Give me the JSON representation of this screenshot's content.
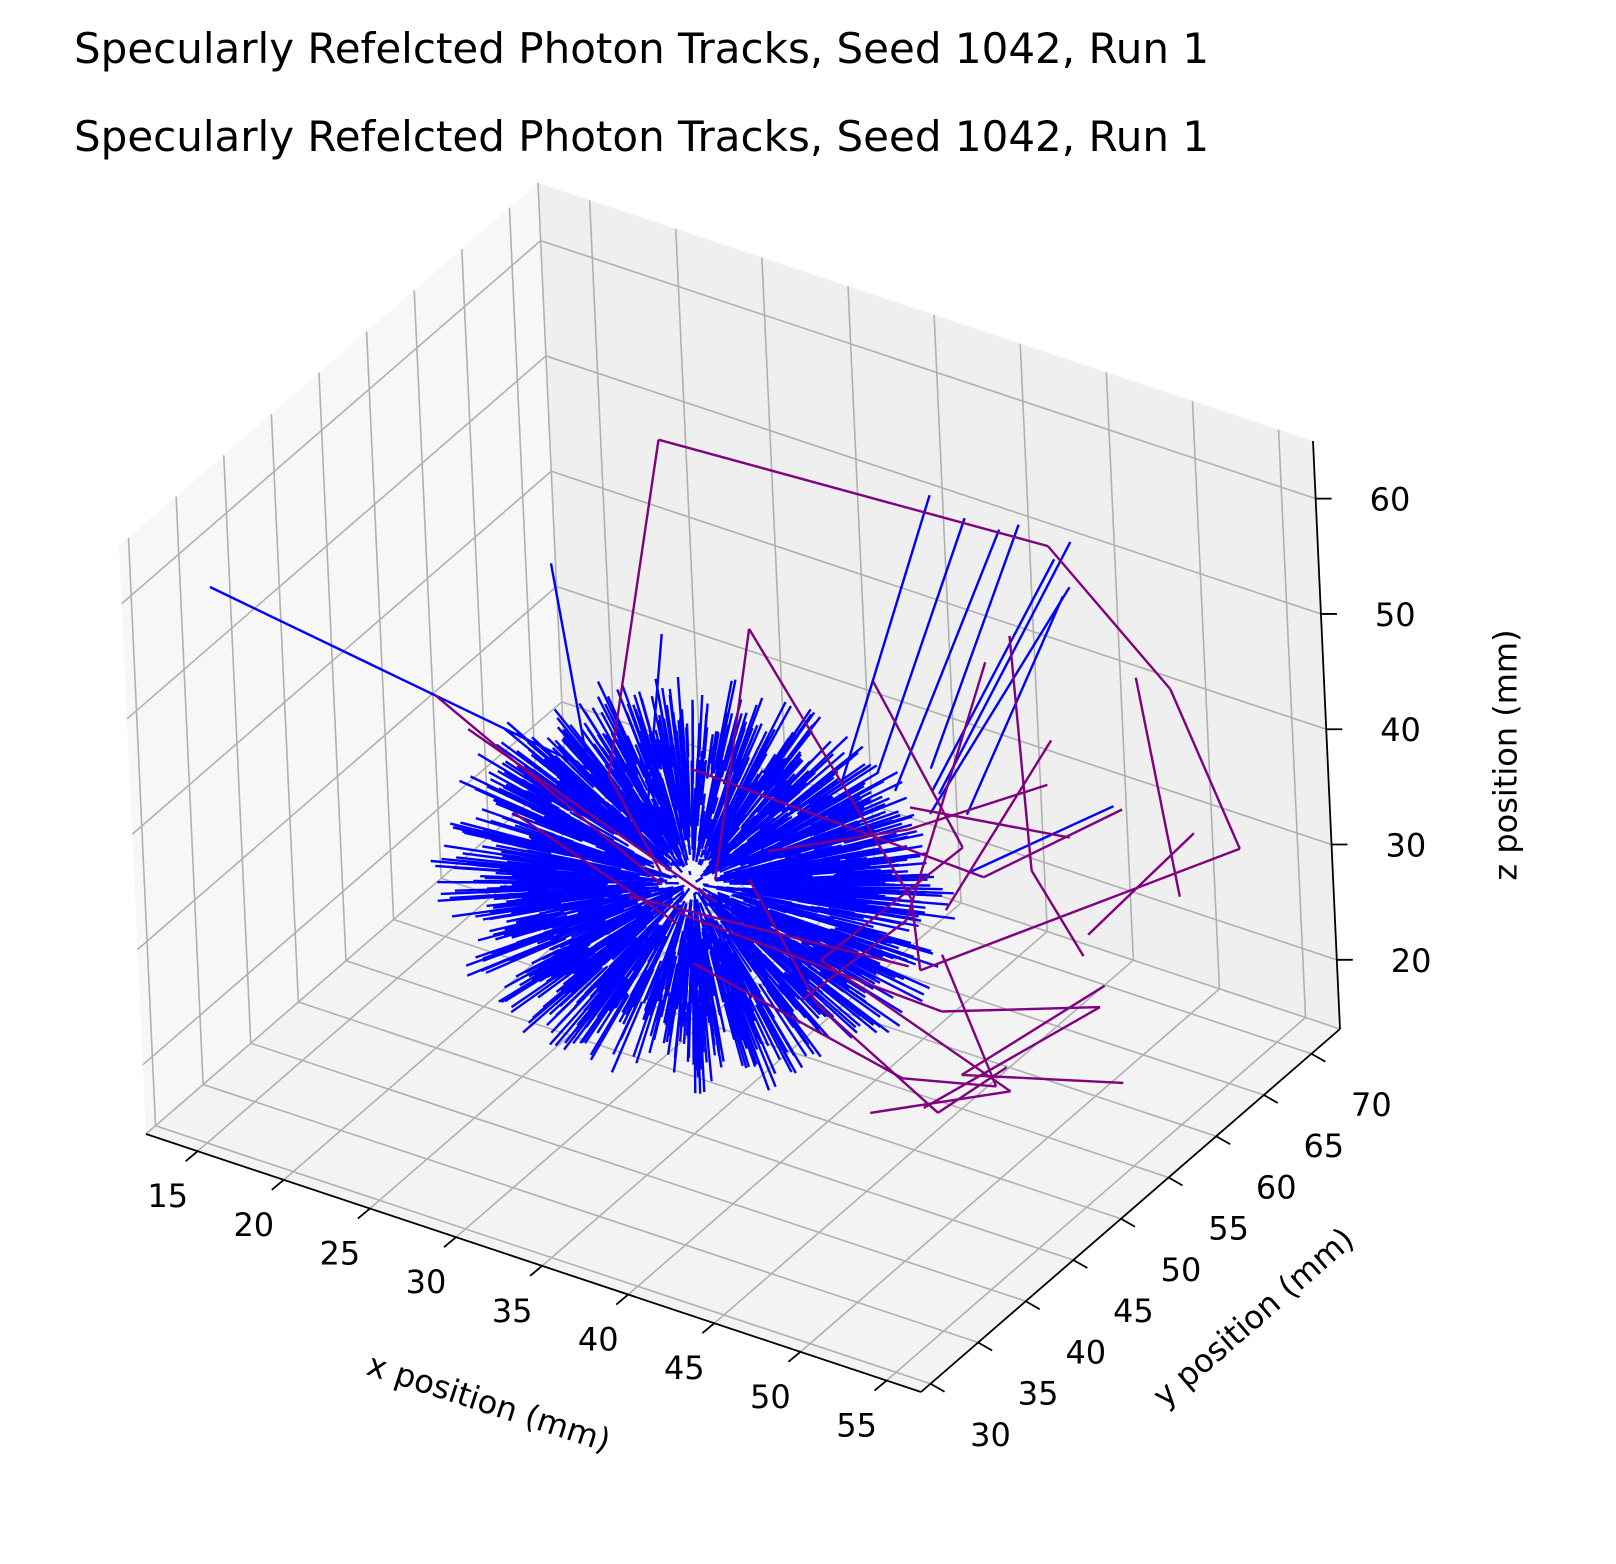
{
  "titles": [
    "Specularly Refelcted Photon Tracks, Seed 1042, Run 1",
    "Specularly Refelcted Photon Tracks, Seed 1042, Run 1"
  ],
  "chart_data": {
    "type": "line",
    "projection": "3d",
    "title": "Specularly Refelcted Photon Tracks, Seed 1042, Run 1",
    "xlabel": "x position (mm)",
    "ylabel": "y position (mm)",
    "zlabel": "z position (mm)",
    "xlim": [
      12,
      57
    ],
    "ylim": [
      29,
      73
    ],
    "zlim": [
      14,
      65
    ],
    "xticks": [
      15,
      20,
      25,
      30,
      35,
      40,
      45,
      50,
      55
    ],
    "yticks": [
      30,
      35,
      40,
      45,
      50,
      55,
      60,
      65,
      70
    ],
    "zticks": [
      20,
      30,
      40,
      50,
      60
    ],
    "grid": true,
    "colors": {
      "tracks": "#0000ff",
      "reflected": "#800080",
      "pane_light": "#f7f7f7",
      "pane_dark": "#efefef",
      "grid": "#b0b0b0"
    },
    "series": [
      {
        "color": "#0000ff",
        "center": [
          35,
          46,
          35
        ],
        "count": 1200,
        "inner_radius": 8.5,
        "outer_radius": [
          9.5,
          13.5
        ],
        "long_tracks": [
          [
            [
              12,
              38,
              55
            ],
            [
              28,
              48,
              40
            ]
          ],
          [
            [
              24,
              52,
              53
            ],
            [
              28,
              48,
              40
            ]
          ],
          [
            [
              28,
              56,
              46
            ],
            [
              30,
              50,
              34
            ]
          ],
          [
            [
              36,
              70,
              52
            ],
            [
              37,
              58,
              36
            ]
          ],
          [
            [
              38,
              70,
              51
            ],
            [
              38,
              60,
              36
            ]
          ],
          [
            [
              40,
              70,
              51
            ],
            [
              39,
              60,
              35
            ]
          ],
          [
            [
              40,
              72,
              50
            ],
            [
              40,
              62,
              36
            ]
          ],
          [
            [
              42,
              72,
              48
            ],
            [
              40,
              62,
              34
            ]
          ],
          [
            [
              43,
              72,
              50
            ],
            [
              41,
              61,
              35
            ]
          ],
          [
            [
              44,
              70,
              48
            ],
            [
              41,
              60,
              34
            ]
          ],
          [
            [
              43,
              71,
              46
            ],
            [
              42,
              62,
              33
            ]
          ],
          [
            [
              46,
              70,
              30
            ],
            [
              42,
              62,
              28
            ]
          ]
        ]
      },
      {
        "color": "#800080",
        "segments": [
          [
            [
              18,
              50,
              40
            ],
            [
              32,
              48,
              32
            ]
          ],
          [
            [
              26,
              60,
              59
            ],
            [
              44,
              68,
              53
            ]
          ],
          [
            [
              44,
              68,
              53
            ],
            [
              52,
              66,
              46
            ]
          ],
          [
            [
              52,
              66,
              46
            ],
            [
              58,
              62,
              38
            ]
          ],
          [
            [
              58,
              62,
              38
            ],
            [
              47,
              48,
              32
            ]
          ],
          [
            [
              26,
              60,
              59
            ],
            [
              28,
              50,
              38
            ]
          ],
          [
            [
              28,
              50,
              38
            ],
            [
              32,
              48,
              33
            ]
          ],
          [
            [
              32,
              58,
              47
            ],
            [
              34,
              50,
              32
            ]
          ],
          [
            [
              32,
              58,
              47
            ],
            [
              42,
              56,
              30
            ]
          ],
          [
            [
              42,
              56,
              30
            ],
            [
              47,
              48,
              32
            ]
          ],
          [
            [
              38,
              60,
              44
            ],
            [
              44,
              58,
              34
            ]
          ],
          [
            [
              44,
              58,
              34
            ],
            [
              40,
              50,
              28
            ]
          ],
          [
            [
              45,
              62,
              50
            ],
            [
              48,
              58,
              34
            ]
          ],
          [
            [
              48,
              58,
              34
            ],
            [
              52,
              56,
              30
            ]
          ],
          [
            [
              50,
              66,
              46
            ],
            [
              52,
              66,
              28
            ]
          ],
          [
            [
              47,
              56,
              53
            ],
            [
              44,
              52,
              32
            ]
          ],
          [
            [
              44,
              52,
              32
            ],
            [
              40,
              48,
              26
            ]
          ],
          [
            [
              30,
              55,
              36
            ],
            [
              44,
              60,
              30
            ]
          ],
          [
            [
              44,
              60,
              30
            ],
            [
              50,
              64,
              36
            ]
          ],
          [
            [
              36,
              52,
              34
            ],
            [
              42,
              56,
              36
            ]
          ],
          [
            [
              42,
              56,
              36
            ],
            [
              48,
              60,
              40
            ]
          ],
          [
            [
              21,
              48,
              40
            ],
            [
              34,
              50,
              30
            ]
          ],
          [
            [
              34,
              46,
              32
            ],
            [
              47,
              50,
              27
            ]
          ],
          [
            [
              47,
              50,
              27
            ],
            [
              54,
              54,
              28
            ]
          ],
          [
            [
              54,
              54,
              28
            ],
            [
              48,
              46,
              22
            ]
          ],
          [
            [
              36,
              44,
              30
            ],
            [
              48,
              44,
              26
            ]
          ],
          [
            [
              48,
              44,
              26
            ],
            [
              50,
              50,
              22
            ]
          ],
          [
            [
              50,
              50,
              22
            ],
            [
              46,
              52,
              30
            ]
          ],
          [
            [
              52,
              58,
              26
            ],
            [
              48,
              50,
              22
            ]
          ],
          [
            [
              48,
              50,
              22
            ],
            [
              54,
              56,
              20
            ]
          ],
          [
            [
              40,
              50,
              28
            ],
            [
              52,
              48,
              24
            ]
          ],
          [
            [
              52,
              48,
              24
            ],
            [
              46,
              44,
              22
            ]
          ],
          [
            [
              30,
              48,
              30
            ],
            [
              44,
              52,
              28
            ]
          ],
          [
            [
              36,
              50,
              33
            ],
            [
              42,
              46,
              28
            ]
          ],
          [
            [
              42,
              46,
              28
            ],
            [
              50,
              44,
              24
            ]
          ],
          [
            [
              50,
              44,
              24
            ],
            [
              53,
              46,
              28
            ]
          ],
          [
            [
              24,
              47,
              35
            ],
            [
              34,
              46,
              31
            ]
          ],
          [
            [
              53,
              66,
              34
            ],
            [
              50,
              60,
              28
            ]
          ],
          [
            [
              46,
              64,
              40
            ],
            [
              44,
              56,
              30
            ]
          ],
          [
            [
              41,
              58,
              36
            ],
            [
              48,
              62,
              34
            ]
          ]
        ]
      }
    ]
  }
}
